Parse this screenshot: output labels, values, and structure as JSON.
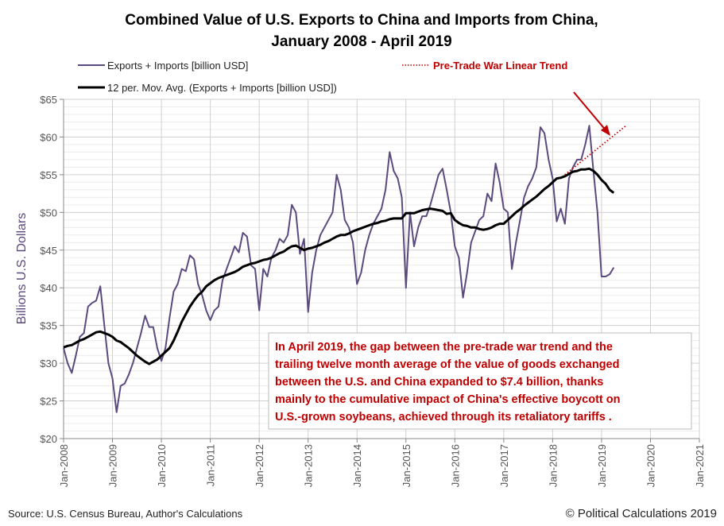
{
  "chart_data": {
    "type": "line",
    "title": "Combined Value of U.S. Exports to China and Imports from China,",
    "subtitle": "January 2008 - April 2019",
    "ylabel": "Billions U.S. Dollars",
    "xlabel": "",
    "ylim": [
      20,
      65
    ],
    "xlim": [
      "2008-01",
      "2021-01"
    ],
    "y_ticks": [
      "$20",
      "$25",
      "$30",
      "$35",
      "$40",
      "$45",
      "$50",
      "$55",
      "$60",
      "$65"
    ],
    "x_ticks": [
      "Jan-2008",
      "Jan-2009",
      "Jan-2010",
      "Jan-2011",
      "Jan-2012",
      "Jan-2013",
      "Jan-2014",
      "Jan-2015",
      "Jan-2016",
      "Jan-2017",
      "Jan-2018",
      "Jan-2019",
      "Jan-2020",
      "Jan-2021"
    ],
    "grid": true,
    "legend_placement": "top",
    "start_month": "2008-01",
    "series": [
      {
        "name": "Exports + Imports [billion USD]",
        "color": "#5b4a7e",
        "values": [
          32.0,
          30.0,
          28.7,
          31.0,
          33.5,
          34.0,
          37.5,
          38.0,
          38.3,
          40.2,
          35.0,
          30.0,
          28.0,
          23.5,
          27.0,
          27.3,
          28.5,
          30.0,
          32.0,
          34.0,
          36.3,
          34.8,
          34.8,
          32.0,
          30.3,
          32.0,
          36.0,
          39.5,
          40.5,
          42.5,
          42.2,
          44.3,
          43.8,
          40.5,
          39.0,
          37.0,
          35.7,
          37.0,
          37.5,
          41.0,
          42.5,
          44.0,
          45.5,
          44.7,
          47.3,
          46.8,
          43.0,
          42.5,
          37.0,
          42.5,
          41.5,
          44.0,
          45.0,
          46.5,
          46.0,
          47.0,
          51.0,
          50.0,
          44.5,
          46.5,
          36.8,
          42.0,
          45.0,
          47.0,
          48.0,
          49.0,
          50.0,
          55.0,
          53.0,
          49.0,
          48.0,
          46.0,
          40.5,
          42.0,
          45.0,
          47.0,
          48.5,
          49.5,
          50.5,
          53.0,
          58.0,
          55.5,
          54.5,
          52.0,
          40.0,
          50.0,
          45.5,
          48.0,
          49.5,
          49.5,
          51.0,
          53.0,
          55.0,
          55.8,
          53.0,
          50.0,
          45.5,
          44.0,
          38.7,
          42.0,
          46.0,
          47.5,
          49.0,
          49.5,
          52.5,
          51.5,
          56.5,
          54.0,
          50.5,
          50.0,
          42.5,
          46.0,
          49.0,
          52.0,
          53.5,
          54.5,
          56.0,
          61.3,
          60.5,
          57.0,
          54.5,
          48.8,
          50.5,
          48.5,
          54.5,
          56.0,
          57.0,
          57.0,
          59.0,
          61.5,
          55.5,
          50.0,
          41.5,
          41.5,
          41.8,
          42.7
        ]
      },
      {
        "name": "12 per. Mov. Avg. (Exports + Imports [billion USD])",
        "color": "#000000",
        "values": [
          32.1,
          32.3,
          32.4,
          32.7,
          33.0,
          33.2,
          33.5,
          33.8,
          34.1,
          34.2,
          34.0,
          33.8,
          33.5,
          33.0,
          32.8,
          32.4,
          32.0,
          31.5,
          31.0,
          30.6,
          30.2,
          29.9,
          30.2,
          30.5,
          31.0,
          31.5,
          32.0,
          33.0,
          34.2,
          35.5,
          36.5,
          37.5,
          38.3,
          39.0,
          39.5,
          40.2,
          40.6,
          41.0,
          41.3,
          41.5,
          41.7,
          41.9,
          42.1,
          42.4,
          42.8,
          43.0,
          43.2,
          43.3,
          43.5,
          43.7,
          43.8,
          44.0,
          44.3,
          44.6,
          44.8,
          45.2,
          45.5,
          45.6,
          45.3,
          45.0,
          45.2,
          45.3,
          45.5,
          45.7,
          46.0,
          46.2,
          46.5,
          46.8,
          47.0,
          47.0,
          47.2,
          47.5,
          47.7,
          47.9,
          48.1,
          48.3,
          48.5,
          48.6,
          48.8,
          48.9,
          49.1,
          49.2,
          49.2,
          49.2,
          49.9,
          49.9,
          49.9,
          50.1,
          50.3,
          50.4,
          50.5,
          50.4,
          50.3,
          50.2,
          49.8,
          49.9,
          49.0,
          48.6,
          48.3,
          48.2,
          48.0,
          48.0,
          47.8,
          47.7,
          47.8,
          48.0,
          48.3,
          48.5,
          48.5,
          49.0,
          49.5,
          50.0,
          50.4,
          50.9,
          51.3,
          51.7,
          52.1,
          52.6,
          53.1,
          53.5,
          54.0,
          54.5,
          54.6,
          54.8,
          55.1,
          55.4,
          55.5,
          55.7,
          55.7,
          55.8,
          55.5,
          55.0,
          54.3,
          53.8,
          53.0,
          52.6
        ]
      },
      {
        "name": "Pre-Trade War Linear Trend",
        "color": "#c00000",
        "style": "dotted",
        "x": [
          "2018-04",
          "2019-07"
        ],
        "values": [
          55.0,
          61.5
        ]
      }
    ],
    "annotation": [
      "In April 2019, the gap between the pre-trade war trend and the",
      "trailing twelve month average of the value of goods exchanged",
      "between the U.S. and China expanded to $7.4 billion, thanks",
      "mainly to the cumulative impact of China's effective boycott on",
      "U.S.-grown soybeans, achieved through its retaliatory tariffs ."
    ]
  },
  "footer": {
    "source": "Source: U.S. Census Bureau, Author's Calculations",
    "copyright": "© Political Calculations 2019"
  }
}
